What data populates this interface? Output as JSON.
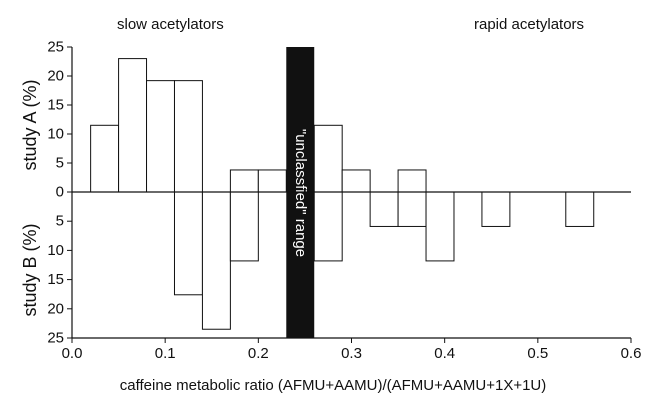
{
  "chart_data": {
    "type": "bar",
    "xlabel": "caffeine metabolic ratio (AFMU+AAMU)/(AFMU+AAMU+1X+1U)",
    "xlim": [
      0.0,
      0.6
    ],
    "x_ticks": [
      "0.0",
      "0.1",
      "0.2",
      "0.3",
      "0.4",
      "0.5",
      "0.6"
    ],
    "y_ticks": [
      25,
      20,
      15,
      10,
      5,
      0
    ],
    "top_ylabel": "study A (%)",
    "bottom_ylabel": "study B (%)",
    "ylim": [
      0,
      25
    ],
    "bin_width": 0.03,
    "region_labels": {
      "left": "slow acetylators",
      "right": "rapid acetylators"
    },
    "unclassified_band": {
      "label": "\"unclassfied\" range",
      "x_start": 0.23,
      "x_end": 0.26
    },
    "series": [
      {
        "name": "study A (%)",
        "direction": "up",
        "bins": [
          {
            "x_start": 0.02,
            "value": 11.5
          },
          {
            "x_start": 0.05,
            "value": 23.0
          },
          {
            "x_start": 0.08,
            "value": 19.2
          },
          {
            "x_start": 0.11,
            "value": 19.2
          },
          {
            "x_start": 0.17,
            "value": 3.8
          },
          {
            "x_start": 0.2,
            "value": 3.8
          },
          {
            "x_start": 0.26,
            "value": 11.5
          },
          {
            "x_start": 0.29,
            "value": 3.8
          },
          {
            "x_start": 0.35,
            "value": 3.8
          }
        ]
      },
      {
        "name": "study B (%)",
        "direction": "down",
        "bins": [
          {
            "x_start": 0.11,
            "value": 17.6
          },
          {
            "x_start": 0.14,
            "value": 23.5
          },
          {
            "x_start": 0.17,
            "value": 11.8
          },
          {
            "x_start": 0.26,
            "value": 11.8
          },
          {
            "x_start": 0.32,
            "value": 5.9
          },
          {
            "x_start": 0.35,
            "value": 5.9
          },
          {
            "x_start": 0.38,
            "value": 11.8
          },
          {
            "x_start": 0.44,
            "value": 5.9
          },
          {
            "x_start": 0.53,
            "value": 5.9
          }
        ]
      }
    ]
  }
}
